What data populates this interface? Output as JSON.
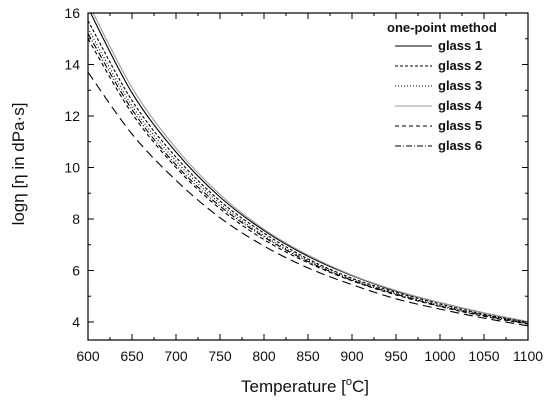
{
  "chart_data": {
    "type": "line",
    "xlabel": "Temperature [°C]",
    "xlabel_main": "Temperature [",
    "xlabel_sup": "o",
    "xlabel_unit": "C]",
    "ylabel": "logη [η in dPa·s]",
    "xlim": [
      600,
      1100
    ],
    "ylim": [
      3.3,
      16
    ],
    "x_ticks": [
      "600",
      "650",
      "700",
      "750",
      "800",
      "850",
      "900",
      "950",
      "1000",
      "1050",
      "1100"
    ],
    "y_ticks": [
      "4",
      "6",
      "8",
      "10",
      "12",
      "14",
      "16"
    ],
    "grid": false,
    "legend_title": "one-point method",
    "legend_position": "top-right",
    "x": [
      600,
      650,
      700,
      750,
      800,
      850,
      900,
      950,
      1000,
      1050,
      1100
    ],
    "series": [
      {
        "name": "glass 1",
        "style": "solid",
        "color": "#000000",
        "values": [
          16.2,
          12.9,
          10.6,
          8.85,
          7.55,
          6.55,
          5.8,
          5.2,
          4.75,
          4.35,
          4.0
        ]
      },
      {
        "name": "glass 2",
        "style": "dotted",
        "color": "#000000",
        "values": [
          15.7,
          12.6,
          10.4,
          8.7,
          7.45,
          6.45,
          5.7,
          5.15,
          4.7,
          4.3,
          3.98
        ]
      },
      {
        "name": "glass 3",
        "style": "fine-dot",
        "color": "#000000",
        "values": [
          15.4,
          12.4,
          10.25,
          8.6,
          7.35,
          6.4,
          5.65,
          5.1,
          4.65,
          4.28,
          3.95
        ]
      },
      {
        "name": "glass 4",
        "style": "solid",
        "color": "#9a9a9a",
        "values": [
          16.4,
          13.1,
          10.75,
          8.95,
          7.6,
          6.6,
          5.82,
          5.22,
          4.75,
          4.35,
          4.02
        ]
      },
      {
        "name": "glass 5",
        "style": "short-dash",
        "color": "#000000",
        "values": [
          15.0,
          12.1,
          10.0,
          8.4,
          7.2,
          6.3,
          5.6,
          5.05,
          4.6,
          4.22,
          3.92
        ]
      },
      {
        "name": "glass 6",
        "style": "dash-dot",
        "color": "#000000",
        "values": [
          15.2,
          12.25,
          10.1,
          8.5,
          7.3,
          6.35,
          5.62,
          5.08,
          4.62,
          4.25,
          3.93
        ]
      },
      {
        "name": "",
        "style": "long-dash",
        "color": "#000000",
        "values": [
          13.7,
          11.3,
          9.5,
          8.05,
          6.95,
          6.1,
          5.45,
          4.9,
          4.5,
          4.15,
          3.85
        ]
      }
    ]
  }
}
